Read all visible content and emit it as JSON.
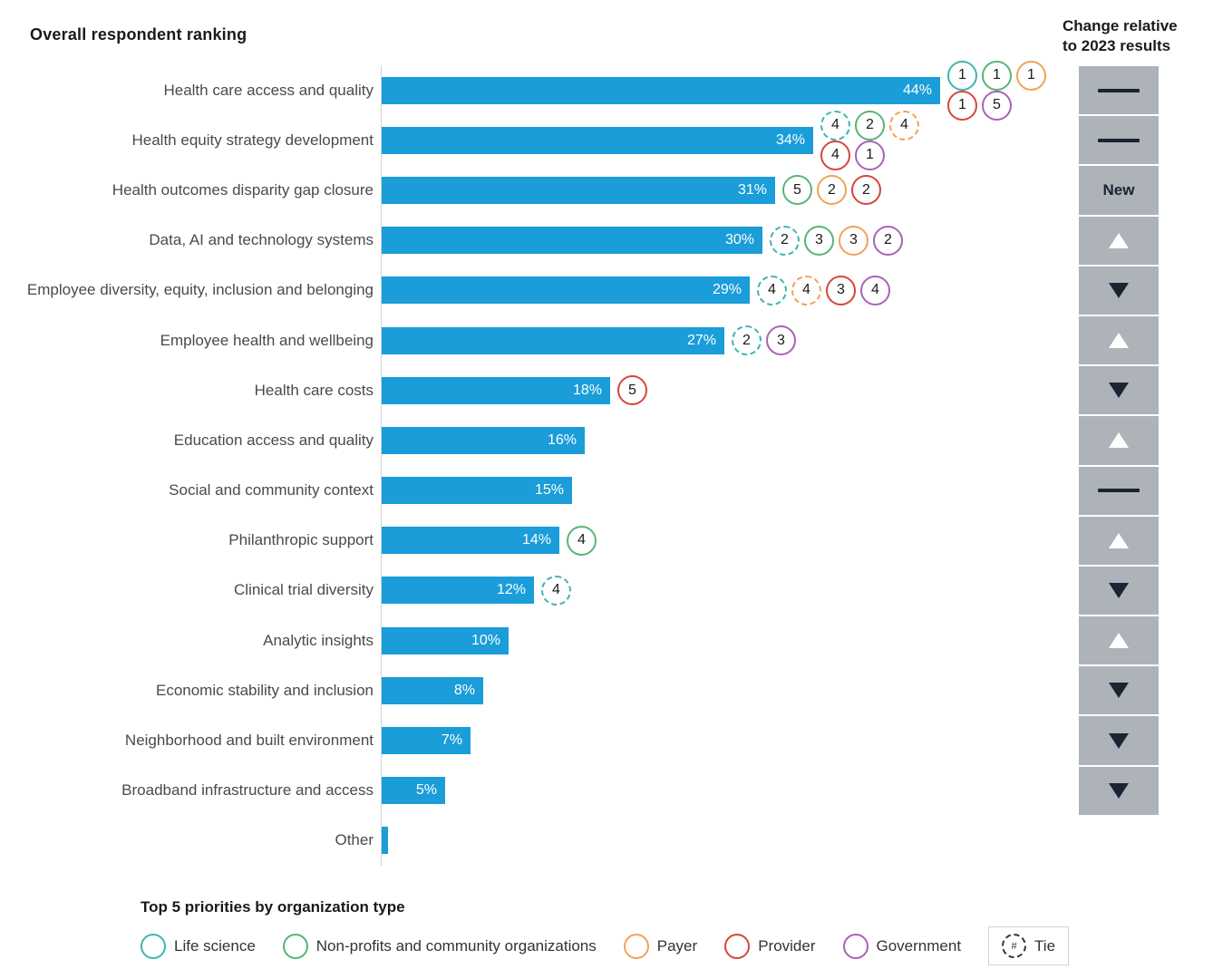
{
  "title": "Overall respondent ranking",
  "change_column": {
    "header_line1": "Change relative",
    "header_line2": "to 2023 results",
    "new_label": "New"
  },
  "colors": {
    "bar": "#1a9dd9",
    "change_box": "#aeb3b9",
    "navy": "#1a2433",
    "axis_line": "#cfd2d4",
    "label_text": "#4a4a4a"
  },
  "org_colors": {
    "life_science": "#3FB5B0",
    "non_profit": "#57B576",
    "payer": "#F0A356",
    "provider": "#D6453B",
    "government": "#A862B5",
    "tie": "#333333"
  },
  "chart_data": {
    "type": "bar",
    "orientation": "horizontal",
    "title": "Overall respondent ranking",
    "xlabel": "",
    "ylabel": "",
    "unit": "%",
    "xlim": [
      0,
      47
    ],
    "grid": false,
    "bars": [
      {
        "label": "Health care access and quality",
        "value": 44,
        "value_label": "44%",
        "change_vs_2023": "same",
        "top5_ranks": [
          {
            "org": "life_science",
            "rank": "1",
            "tie": false
          },
          {
            "org": "non_profit",
            "rank": "1",
            "tie": false
          },
          {
            "org": "payer",
            "rank": "1",
            "tie": false
          },
          {
            "org": "provider",
            "rank": "1",
            "tie": false
          },
          {
            "org": "government",
            "rank": "5",
            "tie": false
          }
        ]
      },
      {
        "label": "Health equity strategy development",
        "value": 34,
        "value_label": "34%",
        "change_vs_2023": "same",
        "top5_ranks": [
          {
            "org": "life_science",
            "rank": "4",
            "tie": true
          },
          {
            "org": "non_profit",
            "rank": "2",
            "tie": false
          },
          {
            "org": "payer",
            "rank": "4",
            "tie": true
          },
          {
            "org": "provider",
            "rank": "4",
            "tie": false
          },
          {
            "org": "government",
            "rank": "1",
            "tie": false
          }
        ]
      },
      {
        "label": "Health outcomes disparity gap closure",
        "value": 31,
        "value_label": "31%",
        "change_vs_2023": "new",
        "top5_ranks": [
          {
            "org": "non_profit",
            "rank": "5",
            "tie": false
          },
          {
            "org": "payer",
            "rank": "2",
            "tie": false
          },
          {
            "org": "provider",
            "rank": "2",
            "tie": false
          }
        ]
      },
      {
        "label": "Data, AI and technology systems",
        "value": 30,
        "value_label": "30%",
        "change_vs_2023": "up",
        "top5_ranks": [
          {
            "org": "life_science",
            "rank": "2",
            "tie": true
          },
          {
            "org": "non_profit",
            "rank": "3",
            "tie": false
          },
          {
            "org": "payer",
            "rank": "3",
            "tie": false
          },
          {
            "org": "government",
            "rank": "2",
            "tie": false
          }
        ]
      },
      {
        "label": "Employee diversity, equity, inclusion and belonging",
        "value": 29,
        "value_label": "29%",
        "change_vs_2023": "down",
        "top5_ranks": [
          {
            "org": "life_science",
            "rank": "4",
            "tie": true
          },
          {
            "org": "payer",
            "rank": "4",
            "tie": true
          },
          {
            "org": "provider",
            "rank": "3",
            "tie": false
          },
          {
            "org": "government",
            "rank": "4",
            "tie": false
          }
        ]
      },
      {
        "label": "Employee health and wellbeing",
        "value": 27,
        "value_label": "27%",
        "change_vs_2023": "up",
        "top5_ranks": [
          {
            "org": "life_science",
            "rank": "2",
            "tie": true
          },
          {
            "org": "government",
            "rank": "3",
            "tie": false
          }
        ]
      },
      {
        "label": "Health care costs",
        "value": 18,
        "value_label": "18%",
        "change_vs_2023": "down",
        "top5_ranks": [
          {
            "org": "provider",
            "rank": "5",
            "tie": false
          }
        ]
      },
      {
        "label": "Education access and quality",
        "value": 16,
        "value_label": "16%",
        "change_vs_2023": "up",
        "top5_ranks": []
      },
      {
        "label": "Social and community context",
        "value": 15,
        "value_label": "15%",
        "change_vs_2023": "same",
        "top5_ranks": []
      },
      {
        "label": "Philanthropic support",
        "value": 14,
        "value_label": "14%",
        "change_vs_2023": "up",
        "top5_ranks": [
          {
            "org": "non_profit",
            "rank": "4",
            "tie": false
          }
        ]
      },
      {
        "label": "Clinical trial diversity",
        "value": 12,
        "value_label": "12%",
        "change_vs_2023": "down",
        "top5_ranks": [
          {
            "org": "life_science",
            "rank": "4",
            "tie": true
          }
        ]
      },
      {
        "label": "Analytic insights",
        "value": 10,
        "value_label": "10%",
        "change_vs_2023": "up",
        "top5_ranks": []
      },
      {
        "label": "Economic stability and inclusion",
        "value": 8,
        "value_label": "8%",
        "change_vs_2023": "down",
        "top5_ranks": []
      },
      {
        "label": "Neighborhood and built environment",
        "value": 7,
        "value_label": "7%",
        "change_vs_2023": "down",
        "top5_ranks": []
      },
      {
        "label": "Broadband infrastructure and access",
        "value": 5,
        "value_label": "5%",
        "change_vs_2023": "down",
        "top5_ranks": []
      },
      {
        "label": "Other",
        "value": 0.5,
        "value_label": "",
        "change_vs_2023": "none",
        "top5_ranks": []
      }
    ],
    "legend": {
      "title": "Top 5 priorities by organization type",
      "position": "bottom",
      "items": [
        {
          "org": "life_science",
          "label": "Life science"
        },
        {
          "org": "non_profit",
          "label": "Non-profits and community organizations"
        },
        {
          "org": "payer",
          "label": "Payer"
        },
        {
          "org": "provider",
          "label": "Provider"
        },
        {
          "org": "government",
          "label": "Government"
        },
        {
          "org": "tie",
          "label": "Tie",
          "symbol": "#"
        }
      ]
    }
  }
}
